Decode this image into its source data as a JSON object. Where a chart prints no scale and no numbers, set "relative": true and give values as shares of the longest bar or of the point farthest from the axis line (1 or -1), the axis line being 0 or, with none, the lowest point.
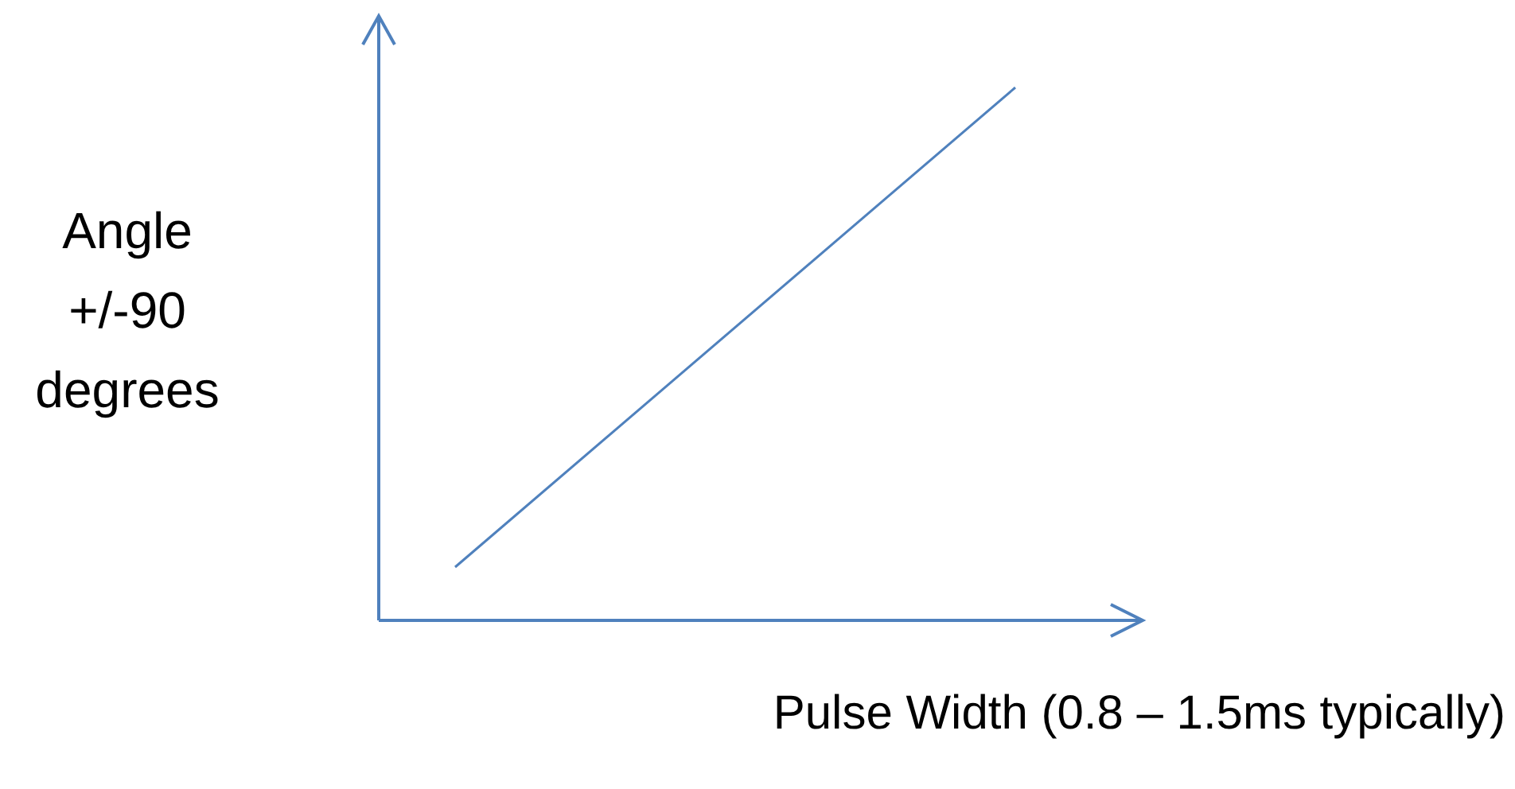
{
  "chart_data": {
    "type": "line",
    "relative": true,
    "xlabel": "Pulse Width (0.8 – 1.5ms typically)",
    "ylabel": "Angle +/-90 degrees",
    "categories": [
      null,
      null,
      null,
      null,
      null,
      null,
      null,
      null,
      null,
      null,
      null,
      null,
      null,
      null,
      null,
      null,
      null,
      null,
      null,
      null,
      null,
      null,
      null,
      null,
      null,
      null,
      null,
      null,
      null,
      null,
      null
    ],
    "series": [
      {
        "color": "#4f81bd",
        "values": [
          null,
          null,
          null,
          0.1,
          null,
          null,
          null,
          null,
          null,
          null,
          null,
          null,
          null,
          null,
          null,
          null,
          null,
          null,
          null,
          null,
          null,
          null,
          null,
          null,
          null,
          1,
          null,
          null,
          null,
          null,
          null
        ]
      }
    ],
    "grid": false,
    "legend": false,
    "marker": "none",
    "line_style": "solid"
  }
}
